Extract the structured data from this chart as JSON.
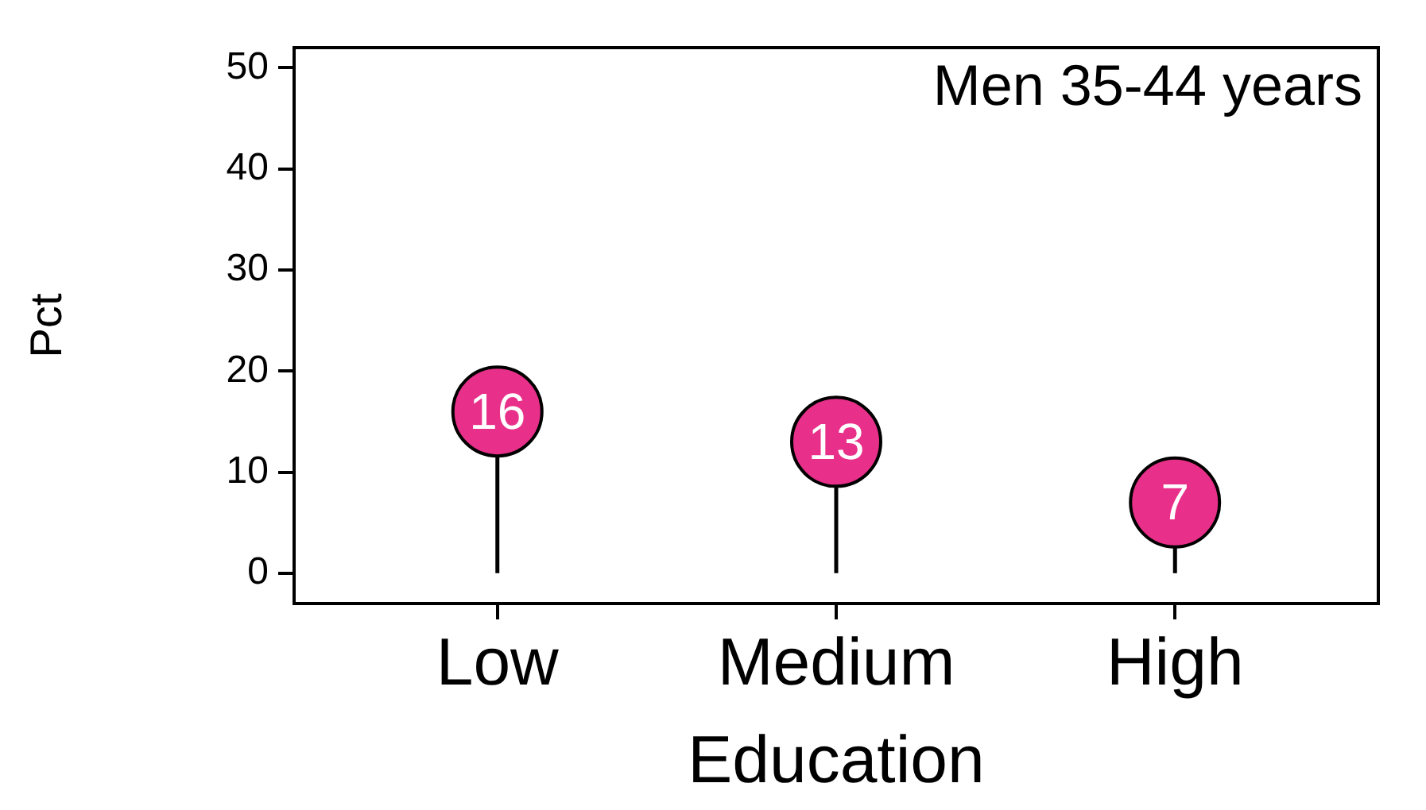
{
  "chart_data": {
    "type": "lollipop",
    "xlabel": "Education",
    "ylabel": "Pct",
    "annotations": [
      "Men 35-44 years"
    ],
    "categories": [
      "Low",
      "Medium",
      "High"
    ],
    "values": [
      16,
      13,
      7
    ],
    "color": "#e8308a",
    "data_labels": true,
    "ylim": [
      -3,
      52
    ],
    "yticks": [
      0,
      10,
      20,
      30,
      40,
      50
    ],
    "grid": false,
    "legend": false,
    "marker": "circle"
  }
}
